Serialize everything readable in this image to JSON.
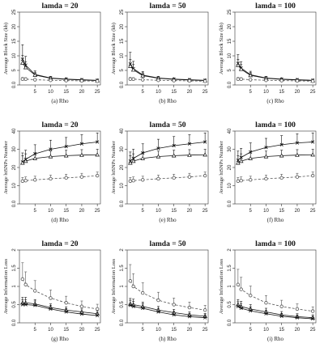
{
  "chart_data": [
    {
      "type": "line",
      "panel": "a",
      "title": "lamda = 20",
      "caption": "(a)  Rho",
      "ylabel": "Average Block Size (kb)",
      "x": [
        1,
        2,
        5,
        10,
        15,
        20,
        25
      ],
      "xticks": [
        5,
        10,
        15,
        20,
        25
      ],
      "ylim": [
        0,
        25
      ],
      "yticks": [
        0,
        5,
        10,
        15,
        20,
        25
      ],
      "series": [
        {
          "marker": "x",
          "dash": "solid",
          "values": [
            8.8,
            6.8,
            3.6,
            2.4,
            2.0,
            1.8,
            1.6
          ],
          "err": [
            5.0,
            3.0,
            1.2,
            0.5,
            0.4,
            0.3,
            0.3
          ]
        },
        {
          "marker": "triangle",
          "dash": "solid",
          "values": [
            7.6,
            6.0,
            3.4,
            2.3,
            1.9,
            1.7,
            1.5
          ],
          "err": [
            2.5,
            2.0,
            1.0,
            0.5,
            0.4,
            0.3,
            0.3
          ]
        },
        {
          "marker": "circle",
          "dash": "dashed",
          "values": [
            2.0,
            2.0,
            1.8,
            1.6,
            1.5,
            1.4,
            1.3
          ],
          "err": [
            0.6,
            0.5,
            0.4,
            0.3,
            0.3,
            0.3,
            0.3
          ]
        }
      ]
    },
    {
      "type": "line",
      "panel": "b",
      "title": "lamda = 50",
      "caption": "(b)  Rho",
      "ylabel": "Average Block Size (kb)",
      "x": [
        1,
        2,
        5,
        10,
        15,
        20,
        25
      ],
      "xticks": [
        5,
        10,
        15,
        20,
        25
      ],
      "ylim": [
        0,
        25
      ],
      "yticks": [
        0,
        5,
        10,
        15,
        20,
        25
      ],
      "series": [
        {
          "marker": "x",
          "dash": "solid",
          "values": [
            7.2,
            5.6,
            3.4,
            2.4,
            2.0,
            1.8,
            1.6
          ],
          "err": [
            4.0,
            2.5,
            1.2,
            0.5,
            0.4,
            0.3,
            0.3
          ]
        },
        {
          "marker": "triangle",
          "dash": "solid",
          "values": [
            6.5,
            5.2,
            3.2,
            2.3,
            1.9,
            1.7,
            1.5
          ],
          "err": [
            2.2,
            1.8,
            1.0,
            0.5,
            0.4,
            0.3,
            0.3
          ]
        },
        {
          "marker": "circle",
          "dash": "dashed",
          "values": [
            2.0,
            2.0,
            1.8,
            1.6,
            1.5,
            1.4,
            1.3
          ],
          "err": [
            0.6,
            0.5,
            0.4,
            0.3,
            0.3,
            0.3,
            0.3
          ]
        }
      ]
    },
    {
      "type": "line",
      "panel": "c",
      "title": "lamda = 100",
      "caption": "(c)  Rho",
      "ylabel": "Average Block Size (kb)",
      "x": [
        1,
        2,
        5,
        10,
        15,
        20,
        25
      ],
      "xticks": [
        5,
        10,
        15,
        20,
        25
      ],
      "ylim": [
        0,
        25
      ],
      "yticks": [
        0,
        5,
        10,
        15,
        20,
        25
      ],
      "series": [
        {
          "marker": "x",
          "dash": "solid",
          "values": [
            7.4,
            5.8,
            3.5,
            2.4,
            2.0,
            1.8,
            1.6
          ],
          "err": [
            3.0,
            2.2,
            1.2,
            0.5,
            0.4,
            0.3,
            0.3
          ]
        },
        {
          "marker": "triangle",
          "dash": "solid",
          "values": [
            6.8,
            5.4,
            3.3,
            2.3,
            1.9,
            1.7,
            1.5
          ],
          "err": [
            2.0,
            1.6,
            1.0,
            0.5,
            0.4,
            0.3,
            0.3
          ]
        },
        {
          "marker": "circle",
          "dash": "dashed",
          "values": [
            2.0,
            2.0,
            1.8,
            1.6,
            1.5,
            1.4,
            1.3
          ],
          "err": [
            0.6,
            0.5,
            0.4,
            0.3,
            0.3,
            0.3,
            0.3
          ]
        }
      ]
    },
    {
      "type": "line",
      "panel": "d",
      "title": "lamda = 20",
      "caption": "(d)  Rho",
      "ylabel": "Average htSNPs Number",
      "x": [
        1,
        2,
        5,
        10,
        15,
        20,
        25
      ],
      "xticks": [
        5,
        10,
        15,
        20,
        25
      ],
      "ylim": [
        0,
        40
      ],
      "yticks": [
        0,
        10,
        20,
        30,
        40
      ],
      "series": [
        {
          "marker": "x",
          "dash": "solid",
          "values": [
            23.0,
            24.5,
            27.5,
            30.0,
            31.5,
            33.0,
            34.0
          ],
          "err": [
            5,
            5,
            5,
            5,
            5,
            5,
            5
          ]
        },
        {
          "marker": "triangle",
          "dash": "solid",
          "values": [
            22.5,
            23.5,
            25.0,
            26.0,
            26.5,
            26.8,
            27.0
          ],
          "err": [
            4,
            4,
            3,
            3,
            3,
            3,
            3
          ]
        },
        {
          "marker": "circle",
          "dash": "dashed",
          "values": [
            12.5,
            12.8,
            13.2,
            13.8,
            14.3,
            14.8,
            15.5
          ],
          "err": [
            2,
            2,
            2,
            2,
            2,
            2,
            2
          ]
        }
      ]
    },
    {
      "type": "line",
      "panel": "e",
      "title": "lamda = 50",
      "caption": "(e)  Rho",
      "ylabel": "Average htSNPs Number",
      "x": [
        1,
        2,
        5,
        10,
        15,
        20,
        25
      ],
      "xticks": [
        5,
        10,
        15,
        20,
        25
      ],
      "ylim": [
        0,
        40
      ],
      "yticks": [
        0,
        10,
        20,
        30,
        40
      ],
      "series": [
        {
          "marker": "x",
          "dash": "solid",
          "values": [
            23.5,
            25.0,
            28.0,
            30.5,
            32.0,
            33.0,
            34.0
          ],
          "err": [
            5,
            5,
            5,
            5,
            5,
            5,
            5
          ]
        },
        {
          "marker": "triangle",
          "dash": "solid",
          "values": [
            22.5,
            23.5,
            25.0,
            26.0,
            26.5,
            26.8,
            27.0
          ],
          "err": [
            4,
            4,
            3,
            3,
            3,
            3,
            3
          ]
        },
        {
          "marker": "circle",
          "dash": "dashed",
          "values": [
            12.5,
            12.8,
            13.2,
            13.8,
            14.3,
            14.8,
            15.5
          ],
          "err": [
            2,
            2,
            2,
            2,
            2,
            2,
            2
          ]
        }
      ]
    },
    {
      "type": "line",
      "panel": "f",
      "title": "lamda = 100",
      "caption": "(f)  Rho",
      "ylabel": "Average htSNPs Number",
      "x": [
        1,
        2,
        5,
        10,
        15,
        20,
        25
      ],
      "xticks": [
        5,
        10,
        15,
        20,
        25
      ],
      "ylim": [
        0,
        40
      ],
      "yticks": [
        0,
        10,
        20,
        30,
        40
      ],
      "series": [
        {
          "marker": "x",
          "dash": "solid",
          "values": [
            24.0,
            25.5,
            28.5,
            31.0,
            32.5,
            33.5,
            34.0
          ],
          "err": [
            5,
            5,
            5,
            5,
            5,
            5,
            5
          ]
        },
        {
          "marker": "triangle",
          "dash": "solid",
          "values": [
            22.5,
            23.5,
            25.0,
            26.0,
            26.5,
            26.8,
            27.0
          ],
          "err": [
            4,
            4,
            3,
            3,
            3,
            3,
            3
          ]
        },
        {
          "marker": "circle",
          "dash": "dashed",
          "values": [
            12.5,
            12.8,
            13.2,
            13.8,
            14.3,
            14.8,
            15.5
          ],
          "err": [
            2,
            2,
            2,
            2,
            2,
            2,
            2
          ]
        }
      ]
    },
    {
      "type": "line",
      "panel": "g",
      "title": "lamda = 20",
      "caption": "(g)  Rho",
      "ylabel": "Average Information Loss",
      "x": [
        1,
        2,
        5,
        10,
        15,
        20,
        25
      ],
      "xticks": [
        5,
        10,
        15,
        20,
        25
      ],
      "ylim": [
        0,
        2.0
      ],
      "yticks": [
        0.0,
        0.5,
        1.0,
        1.5,
        2.0
      ],
      "series": [
        {
          "marker": "circle",
          "dash": "dashed",
          "values": [
            1.2,
            1.05,
            0.88,
            0.68,
            0.55,
            0.45,
            0.38
          ],
          "err": [
            0.45,
            0.35,
            0.28,
            0.22,
            0.18,
            0.15,
            0.13
          ]
        },
        {
          "marker": "triangle",
          "dash": "solid",
          "values": [
            0.55,
            0.55,
            0.52,
            0.42,
            0.35,
            0.3,
            0.25
          ],
          "err": [
            0.15,
            0.15,
            0.12,
            0.1,
            0.09,
            0.08,
            0.08
          ]
        },
        {
          "marker": "x",
          "dash": "solid",
          "values": [
            0.5,
            0.5,
            0.48,
            0.38,
            0.3,
            0.24,
            0.2
          ],
          "err": [
            0.14,
            0.14,
            0.12,
            0.1,
            0.09,
            0.08,
            0.08
          ]
        }
      ]
    },
    {
      "type": "line",
      "panel": "h",
      "title": "lamda = 50",
      "caption": "(h)  Rho",
      "ylabel": "Average Information Loss",
      "x": [
        1,
        2,
        5,
        10,
        15,
        20,
        25
      ],
      "xticks": [
        5,
        10,
        15,
        20,
        25
      ],
      "ylim": [
        0,
        2.0
      ],
      "yticks": [
        0.0,
        0.5,
        1.0,
        1.5,
        2.0
      ],
      "series": [
        {
          "marker": "circle",
          "dash": "dashed",
          "values": [
            1.15,
            1.0,
            0.82,
            0.62,
            0.5,
            0.42,
            0.35
          ],
          "err": [
            0.45,
            0.35,
            0.28,
            0.22,
            0.18,
            0.15,
            0.13
          ]
        },
        {
          "marker": "triangle",
          "dash": "solid",
          "values": [
            0.52,
            0.5,
            0.45,
            0.35,
            0.28,
            0.22,
            0.18
          ],
          "err": [
            0.15,
            0.15,
            0.12,
            0.1,
            0.09,
            0.08,
            0.08
          ]
        },
        {
          "marker": "x",
          "dash": "solid",
          "values": [
            0.48,
            0.45,
            0.4,
            0.3,
            0.22,
            0.17,
            0.14
          ],
          "err": [
            0.14,
            0.14,
            0.12,
            0.1,
            0.09,
            0.08,
            0.08
          ]
        }
      ]
    },
    {
      "type": "line",
      "panel": "i",
      "title": "lamda = 100",
      "caption": "(i)  Rho",
      "ylabel": "Average Information Loss",
      "x": [
        1,
        2,
        5,
        10,
        15,
        20,
        25
      ],
      "xticks": [
        5,
        10,
        15,
        20,
        25
      ],
      "ylim": [
        0,
        2.0
      ],
      "yticks": [
        0.0,
        0.5,
        1.0,
        1.5,
        2.0
      ],
      "series": [
        {
          "marker": "circle",
          "dash": "dashed",
          "values": [
            1.05,
            0.92,
            0.75,
            0.55,
            0.45,
            0.38,
            0.32
          ],
          "err": [
            0.42,
            0.33,
            0.26,
            0.2,
            0.17,
            0.14,
            0.12
          ]
        },
        {
          "marker": "triangle",
          "dash": "solid",
          "values": [
            0.5,
            0.45,
            0.38,
            0.3,
            0.22,
            0.17,
            0.14
          ],
          "err": [
            0.14,
            0.14,
            0.12,
            0.1,
            0.09,
            0.08,
            0.08
          ]
        },
        {
          "marker": "x",
          "dash": "solid",
          "values": [
            0.45,
            0.4,
            0.33,
            0.25,
            0.18,
            0.14,
            0.11
          ],
          "err": [
            0.13,
            0.13,
            0.11,
            0.09,
            0.08,
            0.07,
            0.07
          ]
        }
      ]
    }
  ]
}
